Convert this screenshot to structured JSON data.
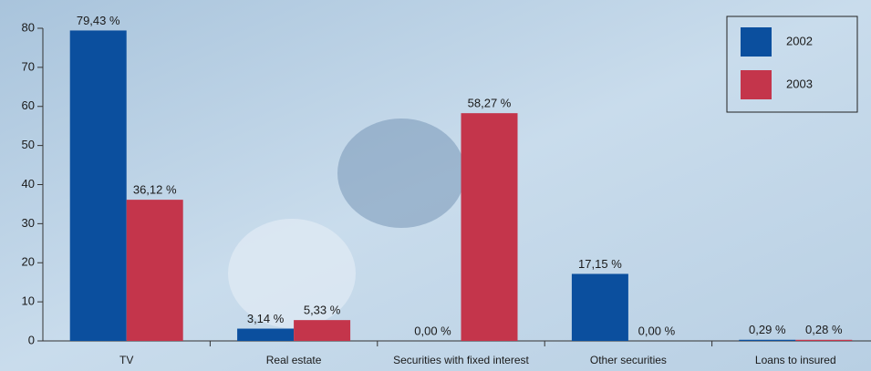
{
  "chart_data": {
    "type": "bar",
    "categories": [
      "TV",
      "Real estate",
      "Securities with fixed interest",
      "Other securities",
      "Loans to insured"
    ],
    "series": [
      {
        "name": "2002",
        "color": "#0b4f9e",
        "values": [
          79.43,
          3.14,
          0.0,
          17.15,
          0.29
        ],
        "value_labels": [
          "79,43 %",
          "3,14 %",
          "0,00 %",
          "17,15 %",
          "0,29 %"
        ]
      },
      {
        "name": "2003",
        "color": "#c4354b",
        "values": [
          36.12,
          5.33,
          58.27,
          0.0,
          0.28
        ],
        "value_labels": [
          "36,12 %",
          "5,33 %",
          "58,27 %",
          "0,00 %",
          "0,28 %"
        ]
      }
    ],
    "ylim": [
      0,
      80
    ],
    "yticks": [
      0,
      10,
      20,
      30,
      40,
      50,
      60,
      70,
      80
    ]
  }
}
